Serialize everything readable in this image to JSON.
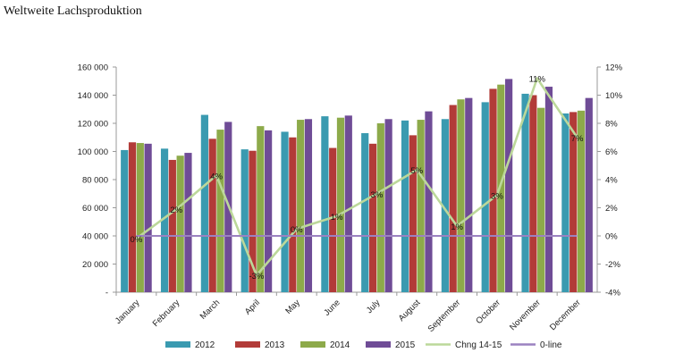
{
  "page": {
    "title": "Weltweite Lachsproduktion"
  },
  "chart_data": {
    "type": "bar",
    "categories": [
      "January",
      "February",
      "March",
      "April",
      "May",
      "June",
      "July",
      "August",
      "September",
      "October",
      "November",
      "December"
    ],
    "series": [
      {
        "name": "2012",
        "color": "#3A9AB0",
        "values": [
          101000,
          102000,
          126000,
          101500,
          114000,
          125000,
          113000,
          122000,
          123000,
          135000,
          141000,
          127000
        ]
      },
      {
        "name": "2013",
        "color": "#B23B38",
        "values": [
          106500,
          94000,
          109000,
          100500,
          110000,
          102500,
          105500,
          111500,
          133000,
          144500,
          140000,
          128000
        ]
      },
      {
        "name": "2014",
        "color": "#8DAA4A",
        "values": [
          106000,
          97000,
          115500,
          118000,
          122500,
          124000,
          120000,
          122500,
          137000,
          147500,
          131000,
          129000
        ]
      },
      {
        "name": "2015",
        "color": "#6F4C96",
        "values": [
          105500,
          99000,
          121000,
          115000,
          123000,
          125500,
          123000,
          128500,
          138000,
          151500,
          146000,
          138000
        ]
      }
    ],
    "line_series": [
      {
        "name": "Chng  14-15",
        "color": "#BCD89A",
        "axis": "right",
        "values": [
          -0.2,
          1.9,
          4.3,
          -2.8,
          0.5,
          1.4,
          3.0,
          4.7,
          0.7,
          2.9,
          11.2,
          7.0
        ]
      },
      {
        "name": "0-line",
        "color": "#9B82C0",
        "axis": "right",
        "values": [
          0,
          0,
          0,
          0,
          0,
          0,
          0,
          0,
          0,
          0,
          0,
          0
        ]
      }
    ],
    "data_labels": [
      "0%",
      "2%",
      "4%",
      "-3%",
      "0%",
      "1%",
      "3%",
      "5%",
      "1%",
      "3%",
      "11%",
      "7%"
    ],
    "y_left": {
      "min": 0,
      "max": 160000,
      "step": 20000,
      "tick_labels": [
        "-",
        "20 000",
        "40 000",
        "60 000",
        "80 000",
        "100 000",
        "120 000",
        "140 000",
        "160 000"
      ]
    },
    "y_right": {
      "min": -4,
      "max": 12,
      "step": 2,
      "tick_labels": [
        "-4%",
        "-2%",
        "0%",
        "2%",
        "4%",
        "6%",
        "8%",
        "10%",
        "12%"
      ]
    },
    "grid": false,
    "legend": {
      "position": "bottom",
      "entries": [
        "2012",
        "2013",
        "2014",
        "2015",
        "Chng  14-15",
        "0-line"
      ]
    }
  }
}
